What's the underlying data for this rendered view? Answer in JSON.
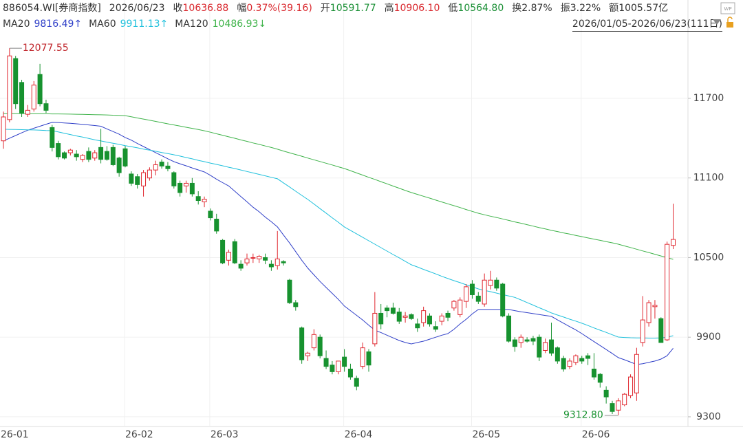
{
  "header": {
    "code": "886054.WI[券商指数]",
    "date": "2026/06/23",
    "items": [
      {
        "label": "收",
        "value": "10636.88",
        "color": "#d9262c"
      },
      {
        "label": "幅",
        "value": "0.37%(39.16)",
        "color": "#d9262c"
      },
      {
        "label": "开",
        "value": "10591.77",
        "color": "#1a8f35"
      },
      {
        "label": "高",
        "value": "10906.10",
        "color": "#d9262c"
      },
      {
        "label": "低",
        "value": "10564.80",
        "color": "#1a8f35"
      },
      {
        "label": "换",
        "value": "2.87%",
        "color": "#333333"
      },
      {
        "label": "振",
        "value": "3.22%",
        "color": "#333333"
      },
      {
        "label": "额",
        "value": "1005.57亿",
        "color": "#333333"
      }
    ],
    "range": "2026/01/05-2026/06/23(111日)"
  },
  "chart_data": {
    "type": "candlestick",
    "up_color": "#e0272f",
    "down_color": "#17922f",
    "categories": [
      "26-01",
      null,
      null,
      null,
      null,
      null,
      null,
      null,
      null,
      null,
      null,
      null,
      null,
      null,
      null,
      null,
      null,
      null,
      null,
      null,
      "26-02",
      null,
      null,
      null,
      null,
      null,
      null,
      null,
      null,
      null,
      null,
      null,
      null,
      null,
      "26-03",
      null,
      null,
      null,
      null,
      null,
      null,
      null,
      null,
      null,
      null,
      null,
      null,
      null,
      null,
      null,
      null,
      null,
      null,
      null,
      null,
      null,
      "26-04",
      null,
      null,
      null,
      null,
      null,
      null,
      null,
      null,
      null,
      null,
      null,
      null,
      null,
      null,
      null,
      null,
      null,
      null,
      null,
      null,
      "26-05",
      null,
      null,
      null,
      null,
      null,
      null,
      null,
      null,
      null,
      null,
      null,
      null,
      null,
      null,
      null,
      null,
      null,
      "26-06",
      null,
      null,
      null,
      null,
      null,
      null,
      null,
      null,
      null,
      null,
      null,
      null,
      null,
      null,
      null
    ],
    "ohlc": [
      [
        11380,
        11600,
        11320,
        11560
      ],
      [
        11540,
        12077.55,
        11520,
        12020
      ],
      [
        12000,
        12020,
        11620,
        11660
      ],
      [
        11820,
        11840,
        11560,
        11590
      ],
      [
        11580,
        11650,
        11560,
        11610
      ],
      [
        11620,
        11830,
        11600,
        11800
      ],
      [
        11880,
        11960,
        11640,
        11660
      ],
      [
        11660,
        11690,
        11590,
        11610
      ],
      [
        11480,
        11500,
        11300,
        11330
      ],
      [
        11360,
        11380,
        11240,
        11260
      ],
      [
        11290,
        11300,
        11240,
        11250
      ],
      [
        11290,
        11320,
        11270,
        11310
      ],
      [
        11280,
        11310,
        11230,
        11260
      ],
      [
        11240,
        11280,
        11220,
        11270
      ],
      [
        11300,
        11330,
        11220,
        11240
      ],
      [
        11250,
        11310,
        11230,
        11290
      ],
      [
        11330,
        11470,
        11210,
        11240
      ],
      [
        11300,
        11340,
        11230,
        11240
      ],
      [
        11330,
        11350,
        11190,
        11200
      ],
      [
        11250,
        11260,
        11110,
        11140
      ],
      [
        11320,
        11340,
        11180,
        11190
      ],
      [
        11130,
        11150,
        11040,
        11060
      ],
      [
        11110,
        11130,
        11020,
        11050
      ],
      [
        11040,
        11160,
        10960,
        11140
      ],
      [
        11100,
        11180,
        11080,
        11160
      ],
      [
        11160,
        11230,
        11120,
        11200
      ],
      [
        11220,
        11240,
        11170,
        11190
      ],
      [
        11190,
        11220,
        11150,
        11170
      ],
      [
        11140,
        11150,
        11020,
        11040
      ],
      [
        11060,
        11080,
        10960,
        10990
      ],
      [
        11040,
        11080,
        10990,
        11060
      ],
      [
        11060,
        11100,
        10960,
        10980
      ],
      [
        10960,
        11000,
        10900,
        10930
      ],
      [
        10920,
        10960,
        10880,
        10940
      ],
      [
        10850,
        10870,
        10780,
        10800
      ],
      [
        10790,
        10830,
        10680,
        10700
      ],
      [
        10630,
        10640,
        10450,
        10460
      ],
      [
        10480,
        10560,
        10440,
        10540
      ],
      [
        10620,
        10640,
        10450,
        10460
      ],
      [
        10450,
        10480,
        10400,
        10420
      ],
      [
        10460,
        10530,
        10440,
        10490
      ],
      [
        10500,
        10530,
        10460,
        10500
      ],
      [
        10490,
        10520,
        10460,
        10510
      ],
      [
        10500,
        10530,
        10450,
        10480
      ],
      [
        10450,
        10480,
        10400,
        10430
      ],
      [
        10440,
        10700,
        10410,
        10490
      ],
      [
        10470,
        10480,
        10440,
        10460
      ],
      [
        10330,
        10340,
        10150,
        10160
      ],
      [
        10160,
        10180,
        10100,
        10130
      ],
      [
        9970,
        9980,
        9700,
        9730
      ],
      [
        9760,
        9790,
        9720,
        9780
      ],
      [
        9820,
        9960,
        9800,
        9920
      ],
      [
        9900,
        9920,
        9740,
        9760
      ],
      [
        9740,
        9800,
        9660,
        9680
      ],
      [
        9690,
        9720,
        9620,
        9640
      ],
      [
        9640,
        9720,
        9620,
        9720
      ],
      [
        9750,
        9810,
        9640,
        9680
      ],
      [
        9660,
        9700,
        9580,
        9600
      ],
      [
        9590,
        9610,
        9500,
        9530
      ],
      [
        9680,
        9860,
        9660,
        9820
      ],
      [
        9790,
        9810,
        9640,
        9690
      ],
      [
        9850,
        10240,
        9830,
        10080
      ],
      [
        10080,
        10150,
        9960,
        10000
      ],
      [
        10120,
        10140,
        10050,
        10100
      ],
      [
        10120,
        10160,
        10070,
        10080
      ],
      [
        10090,
        10120,
        10000,
        10020
      ],
      [
        10050,
        10090,
        10010,
        10060
      ],
      [
        10070,
        10080,
        10030,
        10040
      ],
      [
        10000,
        10040,
        9940,
        9970
      ],
      [
        10010,
        10130,
        9980,
        10100
      ],
      [
        10060,
        10080,
        9980,
        10000
      ],
      [
        9980,
        10020,
        9940,
        9960
      ],
      [
        10020,
        10080,
        9990,
        10060
      ],
      [
        10080,
        10100,
        10020,
        10050
      ],
      [
        10120,
        10180,
        10100,
        10170
      ],
      [
        10070,
        10200,
        10050,
        10180
      ],
      [
        10170,
        10300,
        10120,
        10280
      ],
      [
        10300,
        10330,
        10190,
        10220
      ],
      [
        10210,
        10240,
        10150,
        10170
      ],
      [
        10150,
        10380,
        10130,
        10330
      ],
      [
        10290,
        10400,
        10260,
        10330
      ],
      [
        10330,
        10350,
        10250,
        10270
      ],
      [
        10300,
        10310,
        10050,
        10060
      ],
      [
        10060,
        10080,
        9860,
        9870
      ],
      [
        9880,
        9900,
        9790,
        9830
      ],
      [
        9860,
        9920,
        9820,
        9900
      ],
      [
        9880,
        9900,
        9860,
        9870
      ],
      [
        9890,
        9910,
        9840,
        9870
      ],
      [
        9900,
        9920,
        9720,
        9750
      ],
      [
        9800,
        9890,
        9780,
        9860
      ],
      [
        9880,
        10010,
        9760,
        9780
      ],
      [
        9820,
        9830,
        9700,
        9720
      ],
      [
        9740,
        9760,
        9640,
        9660
      ],
      [
        9680,
        9740,
        9660,
        9720
      ],
      [
        9710,
        9770,
        9690,
        9760
      ],
      [
        9740,
        9760,
        9700,
        9720
      ],
      [
        9760,
        9780,
        9690,
        9740
      ],
      [
        9660,
        9780,
        9580,
        9600
      ],
      [
        9620,
        9630,
        9520,
        9560
      ],
      [
        9500,
        9530,
        9400,
        9450
      ],
      [
        9400,
        9420,
        9320,
        9340
      ],
      [
        9350,
        9440,
        9312.8,
        9420
      ],
      [
        9390,
        9480,
        9380,
        9470
      ],
      [
        9460,
        9620,
        9440,
        9600
      ],
      [
        9480,
        9820,
        9420,
        9770
      ],
      [
        9860,
        10210,
        9830,
        10030
      ],
      [
        10010,
        10180,
        9980,
        10160
      ],
      [
        10130,
        10180,
        10040,
        10140
      ],
      [
        10040,
        10050,
        9860,
        9860
      ],
      [
        9880,
        10620,
        9870,
        10600
      ],
      [
        10591.77,
        10906.1,
        10564.8,
        10636.88
      ]
    ],
    "series": [
      {
        "name": "MA20",
        "color": "#2f3fc8",
        "trend": "↑",
        "values": [
          11379,
          11400,
          11420,
          11440,
          11460,
          11475,
          11490,
          11505,
          11519,
          11518,
          11515,
          11512,
          11508,
          11504,
          11500,
          11495,
          11490,
          11470,
          11450,
          11430,
          11405,
          11385,
          11360,
          11337,
          11314,
          11291,
          11268,
          11245,
          11223,
          11207,
          11192,
          11176,
          11161,
          11145,
          11120,
          11090,
          11065,
          11040,
          11000,
          10960,
          10920,
          10880,
          10845,
          10805,
          10770,
          10731,
          10670,
          10610,
          10545,
          10480,
          10420,
          10370,
          10320,
          10275,
          10230,
          10185,
          10135,
          10100,
          10065,
          10030,
          9990,
          9953,
          9935,
          9915,
          9895,
          9875,
          9860,
          9849,
          9860,
          9870,
          9885,
          9900,
          9915,
          9927,
          9960,
          10000,
          10035,
          10075,
          10109,
          10109,
          10109,
          10109,
          10109,
          10109,
          10100,
          10092,
          10085,
          10078,
          10071,
          10064,
          10057,
          10030,
          10005,
          9980,
          9955,
          9927,
          9897,
          9867,
          9837,
          9807,
          9777,
          9746,
          9730,
          9712,
          9694,
          9700,
          9710,
          9720,
          9735,
          9760,
          9816.49
        ]
      },
      {
        "name": "MA60",
        "color": "#1fc0dc",
        "trend": "↑",
        "values": [
          11467,
          11466,
          11465,
          11464,
          11463,
          11462,
          11460,
          11458,
          11457,
          11447,
          11437,
          11427,
          11417,
          11408,
          11398,
          11388,
          11379,
          11370,
          11362,
          11353,
          11344,
          11336,
          11327,
          11318,
          11310,
          11301,
          11292,
          11284,
          11275,
          11265,
          11254,
          11244,
          11233,
          11223,
          11212,
          11202,
          11192,
          11181,
          11171,
          11160,
          11149,
          11138,
          11127,
          11116,
          11105,
          11094,
          11063,
          11032,
          11000,
          10969,
          10938,
          10904,
          10869,
          10835,
          10800,
          10766,
          10731,
          10705,
          10679,
          10653,
          10627,
          10601,
          10575,
          10549,
          10523,
          10498,
          10472,
          10446,
          10429,
          10411,
          10394,
          10377,
          10359,
          10342,
          10326,
          10311,
          10295,
          10280,
          10264,
          10253,
          10243,
          10232,
          10221,
          10211,
          10200,
          10181,
          10161,
          10142,
          10122,
          10103,
          10083,
          10067,
          10052,
          10036,
          10021,
          10005,
          9988,
          9970,
          9953,
          9936,
          9918,
          9901,
          9898,
          9896,
          9895,
          9894,
          9893,
          9893,
          9895,
          9900,
          9911.13
        ]
      },
      {
        "name": "MA120",
        "color": "#3fb34a",
        "trend": "↓",
        "values": [
          11586,
          11586,
          11586,
          11585,
          11585,
          11585,
          11584,
          11584,
          11583,
          11583,
          11582,
          11581,
          11580,
          11579,
          11578,
          11577,
          11576,
          11575,
          11573,
          11572,
          11570,
          11561,
          11552,
          11544,
          11535,
          11526,
          11517,
          11508,
          11500,
          11491,
          11482,
          11474,
          11465,
          11456,
          11445,
          11433,
          11422,
          11410,
          11399,
          11387,
          11376,
          11364,
          11353,
          11341,
          11330,
          11317,
          11303,
          11290,
          11277,
          11264,
          11250,
          11237,
          11224,
          11211,
          11198,
          11184,
          11171,
          11155,
          11138,
          11122,
          11105,
          11089,
          11072,
          11056,
          11039,
          11023,
          11006,
          10990,
          10976,
          10962,
          10948,
          10933,
          10919,
          10905,
          10891,
          10877,
          10862,
          10848,
          10834,
          10823,
          10812,
          10802,
          10791,
          10780,
          10769,
          10759,
          10748,
          10737,
          10726,
          10716,
          10705,
          10696,
          10686,
          10677,
          10667,
          10658,
          10648,
          10639,
          10630,
          10620,
          10611,
          10601,
          10588,
          10576,
          10563,
          10550,
          10538,
          10525,
          10512,
          10500,
          10486.93
        ]
      }
    ],
    "high_label": {
      "value": 12077.55,
      "label": "12077.55"
    },
    "low_label": {
      "value": 9312.8,
      "label": "9312.80"
    },
    "ylim": [
      9227,
      12208
    ],
    "yticks": [
      11700,
      11100,
      10500,
      9900,
      9300
    ],
    "grid": true
  }
}
